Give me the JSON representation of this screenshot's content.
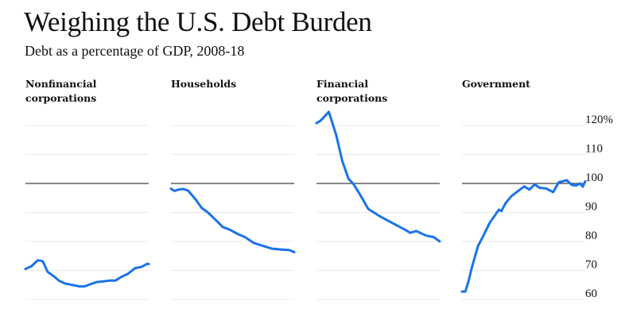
{
  "title": "Weighing the U.S. Debt Burden",
  "subtitle": "Debt as a percentage of GDP, 2008-18",
  "chart_data": [
    {
      "type": "line",
      "title": "Nonfinancial corporations",
      "xlim": [
        2008,
        2018
      ],
      "ylim": [
        60,
        120
      ],
      "grid": true,
      "reference_line": 100,
      "x": [
        2008.0,
        2008.5,
        2009.0,
        2009.4,
        2009.8,
        2010.3,
        2010.7,
        2011.2,
        2011.8,
        2012.4,
        2012.8,
        2013.3,
        2013.8,
        2014.3,
        2014.8,
        2015.3,
        2015.8,
        2016.3,
        2016.9,
        2017.4,
        2017.9,
        2018.0
      ],
      "y": [
        70.5,
        71.5,
        73.5,
        73.2,
        69.5,
        68,
        66.5,
        65.5,
        65,
        64.5,
        64.5,
        65.3,
        66,
        66.2,
        66.5,
        66.5,
        67.8,
        68.8,
        70.8,
        71.2,
        72.3,
        72.2
      ]
    },
    {
      "type": "line",
      "title": "Households",
      "xlim": [
        2008,
        2018
      ],
      "ylim": [
        60,
        120
      ],
      "grid": true,
      "reference_line": 100,
      "x": [
        2008.0,
        2008.3,
        2008.6,
        2009.0,
        2009.4,
        2010.0,
        2010.5,
        2011.0,
        2011.6,
        2012.2,
        2012.8,
        2013.4,
        2014.0,
        2014.7,
        2015.5,
        2016.2,
        2017.0,
        2017.6,
        2018.0
      ],
      "y": [
        98.2,
        97.4,
        97.9,
        98.1,
        97.5,
        94.5,
        91.5,
        90,
        87.5,
        85,
        84,
        82.6,
        81.5,
        79.5,
        78.4,
        77.5,
        77.2,
        77,
        76.3
      ]
    },
    {
      "type": "line",
      "title": "Financial corporations",
      "xlim": [
        2008,
        2018
      ],
      "ylim": [
        60,
        120
      ],
      "grid": true,
      "reference_line": 100,
      "x": [
        2008.0,
        2008.34,
        2009.0,
        2009.6,
        2010.1,
        2010.6,
        2011.0,
        2011.6,
        2012.2,
        2013.1,
        2014.1,
        2015.2,
        2015.6,
        2016.1,
        2016.9,
        2017.5,
        2018.0
      ],
      "y": [
        120.8,
        121.7,
        124.7,
        116.7,
        107.7,
        101.6,
        99.8,
        95.7,
        91.2,
        88.8,
        86.5,
        84,
        83,
        83.6,
        82,
        81.5,
        80
      ]
    },
    {
      "type": "line",
      "title": "Government",
      "xlim": [
        2008,
        2018
      ],
      "ylim": [
        60,
        120
      ],
      "grid": true,
      "reference_line": 100,
      "x": [
        2008.0,
        2008.28,
        2008.54,
        2008.8,
        2009.29,
        2009.72,
        2010.26,
        2011.0,
        2011.2,
        2011.55,
        2012.0,
        2013.05,
        2013.48,
        2013.9,
        2014.3,
        2014.8,
        2015.4,
        2015.85,
        2016.5,
        2016.9,
        2017.25,
        2017.57,
        2017.8,
        2018.0
      ],
      "y": [
        62.7,
        62.7,
        66.5,
        71,
        78.3,
        81.9,
        86.5,
        91,
        90.5,
        93.3,
        95.6,
        99,
        97.9,
        99.7,
        98.5,
        98.3,
        97,
        100.4,
        101.1,
        99.5,
        99.3,
        100,
        98.9,
        100.7
      ]
    }
  ],
  "y_ticks": [
    "120%",
    "110",
    "100",
    "90",
    "80",
    "70",
    "60"
  ],
  "y_tick_values": [
    120,
    110,
    100,
    90,
    80,
    70,
    60
  ],
  "colors": {
    "line": "#1a73e8",
    "grid": "#e8e8e8",
    "reference": "#111111"
  }
}
